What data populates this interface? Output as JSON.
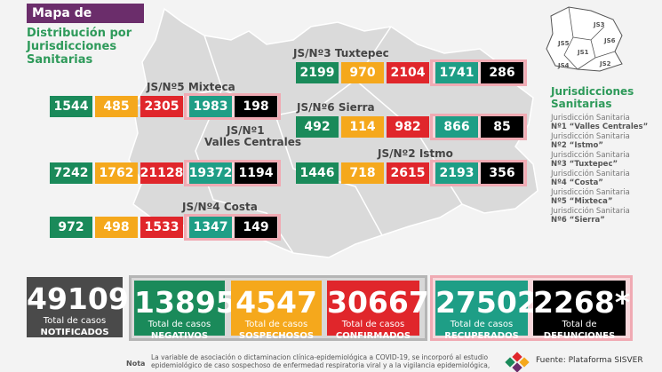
{
  "header": {
    "title": "Mapa de Oaxaca",
    "subtitle_lines": [
      "Distribución por",
      "Jurisdicciones",
      "Sanitarias"
    ]
  },
  "regions": [
    {
      "label_lines": [
        "JS/Nº3 Tuxtepec"
      ],
      "values": [
        2199,
        970,
        2104,
        1741,
        286
      ]
    },
    {
      "label_lines": [
        "JS/Nº5 Mixteca"
      ],
      "values": [
        1544,
        485,
        2305,
        1983,
        198
      ]
    },
    {
      "label_lines": [
        "JS/Nº6 Sierra"
      ],
      "values": [
        492,
        114,
        982,
        866,
        85
      ]
    },
    {
      "label_lines": [
        "JS/Nº1",
        "Valles Centrales"
      ],
      "values": [
        7242,
        1762,
        21128,
        19372,
        1194
      ]
    },
    {
      "label_lines": [
        "JS/Nº2 Istmo"
      ],
      "values": [
        1446,
        718,
        2615,
        2193,
        356
      ]
    },
    {
      "label_lines": [
        "JS/Nº4 Costa"
      ],
      "values": [
        972,
        498,
        1533,
        1347,
        149
      ]
    }
  ],
  "mini_map": {
    "labels": [
      "JS5",
      "JS3",
      "JS6",
      "JS1",
      "JS2",
      "JS4"
    ]
  },
  "legend": {
    "title_lines": [
      "Jurisdicciones",
      "Sanitarias"
    ],
    "items": [
      [
        "Jurisdicción Sanitaria",
        "Nº1 “Valles Centrales”"
      ],
      [
        "Jurisdicción Sanitaria",
        "Nº2 “Istmo”"
      ],
      [
        "Jurisdicción Sanitaria",
        "Nº3 “Tuxtepec”"
      ],
      [
        "Jurisdicción Sanitaria",
        "Nº4 “Costa”"
      ],
      [
        "Jurisdicción Sanitaria",
        "Nº5 “Mixteca”"
      ],
      [
        "Jurisdicción Sanitaria",
        "Nº6 “Sierra”"
      ]
    ]
  },
  "totals": [
    {
      "value": 49109,
      "line1": "Total de casos",
      "line2": "NOTIFICADOS"
    },
    {
      "value": 13895,
      "line1": "Total de casos",
      "line2": "NEGATIVOS"
    },
    {
      "value": 4547,
      "line1": "Total de casos",
      "line2": "SOSPECHOSOS"
    },
    {
      "value": 30667,
      "line1": "Total de casos",
      "line2": "CONFIRMADOS"
    },
    {
      "value": 27502,
      "line1": "Total de casos",
      "line2": "RECUPERADOS"
    },
    {
      "value": "2268*",
      "line1": "Total de",
      "line2": "DEFUNCIONES"
    }
  ],
  "note": {
    "label": "Nota",
    "lines": [
      "La variable de asociación o dictaminacion clínica-epidemiológica a COVID-19, se incorporó al estudio",
      "epidemiológico de caso sospechoso de enfermedad respiratoria viral y a la vigilancia epidemiológica,"
    ]
  },
  "source": "Fuente: Plataforma SISVER"
}
